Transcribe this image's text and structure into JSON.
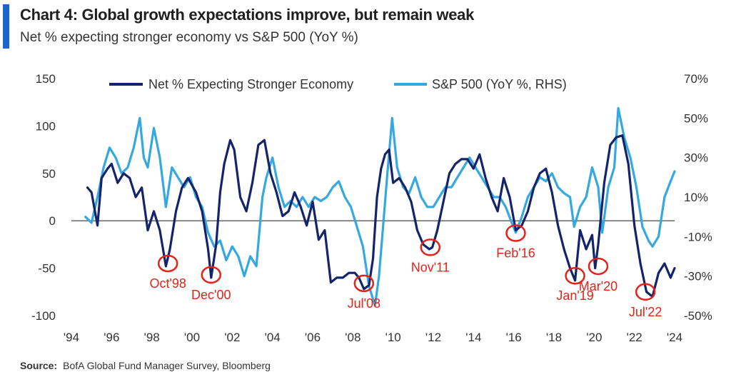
{
  "title": "Chart 4: Global growth expectations improve, but remain weak",
  "subtitle": "Net % expecting stronger economy vs S&P 500 (YoY %)",
  "source_label": "Source:",
  "source_text": "BofA Global Fund Manager Survey, Bloomberg",
  "colors": {
    "accent": "#1a66c9",
    "net": "#14246b",
    "spx": "#35a8e0",
    "annotation": "#e32219"
  },
  "chart_data": {
    "type": "line",
    "title": "Chart 4: Global growth expectations improve, but remain weak",
    "subtitle": "Net % expecting stronger economy vs S&P 500 (YoY %)",
    "legend_position": "top",
    "x_ticks": [
      "'94",
      "'96",
      "'98",
      "'00",
      "'02",
      "'04",
      "'06",
      "'08",
      "'10",
      "'12",
      "'14",
      "'16",
      "'18",
      "'20",
      "'22",
      "'24"
    ],
    "x_tick_years": [
      1994,
      1996,
      1998,
      2000,
      2002,
      2004,
      2006,
      2008,
      2010,
      2012,
      2014,
      2016,
      2018,
      2020,
      2022,
      2024
    ],
    "xlim": [
      1994,
      2024
    ],
    "y_left_lim": [
      -100,
      150
    ],
    "y_left_ticks": [
      "150",
      "100",
      "50",
      "0",
      "-50",
      "-100"
    ],
    "y_left_tick_values": [
      150,
      100,
      50,
      0,
      -50,
      -100
    ],
    "y_right_lim": [
      -50,
      70
    ],
    "y_right_ticks": [
      "70%",
      "50%",
      "30%",
      "10%",
      "-10%",
      "-30%",
      "-50%"
    ],
    "y_right_tick_values": [
      70,
      50,
      30,
      10,
      -10,
      -30,
      -50
    ],
    "series": [
      {
        "name": "Net % Expecting Stronger Economy",
        "axis": "left",
        "x": [
          1994.8,
          1995.0,
          1995.3,
          1995.5,
          1995.8,
          1996.0,
          1996.3,
          1996.6,
          1996.9,
          1997.2,
          1997.5,
          1997.8,
          1998.1,
          1998.4,
          1998.7,
          1998.9,
          1999.2,
          1999.5,
          1999.8,
          2000.2,
          2000.5,
          2000.8,
          2000.95,
          2001.2,
          2001.4,
          2001.6,
          2001.9,
          2002.1,
          2002.4,
          2002.7,
          2003.0,
          2003.3,
          2003.6,
          2003.9,
          2004.2,
          2004.5,
          2004.8,
          2005.1,
          2005.4,
          2005.7,
          2006.0,
          2006.3,
          2006.6,
          2006.9,
          2007.2,
          2007.5,
          2007.8,
          2008.1,
          2008.3,
          2008.55,
          2008.8,
          2009.0,
          2009.2,
          2009.4,
          2009.6,
          2009.8,
          2010.0,
          2010.3,
          2010.6,
          2010.9,
          2011.2,
          2011.5,
          2011.8,
          2011.95,
          2012.2,
          2012.5,
          2012.8,
          2013.1,
          2013.4,
          2013.7,
          2014.0,
          2014.3,
          2014.6,
          2014.9,
          2015.2,
          2015.5,
          2015.8,
          2016.1,
          2016.4,
          2016.7,
          2017.0,
          2017.3,
          2017.6,
          2017.9,
          2018.2,
          2018.5,
          2018.8,
          2019.05,
          2019.3,
          2019.6,
          2019.9,
          2020.05,
          2020.2,
          2020.5,
          2020.8,
          2021.1,
          2021.4,
          2021.7,
          2022.0,
          2022.3,
          2022.6,
          2022.9,
          2023.2,
          2023.5,
          2023.8,
          2024.0
        ],
        "values": [
          35,
          30,
          -5,
          45,
          55,
          60,
          40,
          50,
          45,
          25,
          35,
          -10,
          10,
          -10,
          -48,
          -30,
          10,
          35,
          45,
          30,
          10,
          -30,
          -60,
          -25,
          30,
          60,
          85,
          75,
          25,
          10,
          40,
          80,
          85,
          50,
          30,
          5,
          10,
          30,
          15,
          -5,
          20,
          -20,
          -10,
          -65,
          -60,
          -60,
          -55,
          -55,
          -60,
          -72,
          -68,
          -40,
          25,
          55,
          70,
          75,
          40,
          45,
          35,
          20,
          -10,
          -25,
          -30,
          -28,
          -10,
          20,
          50,
          60,
          65,
          65,
          55,
          70,
          45,
          25,
          10,
          45,
          25,
          -10,
          -5,
          10,
          35,
          50,
          55,
          30,
          -5,
          -30,
          -50,
          -63,
          -10,
          -30,
          -15,
          -50,
          -25,
          40,
          80,
          88,
          90,
          60,
          -5,
          -45,
          -75,
          -80,
          -55,
          -45,
          -60,
          -50
        ]
      },
      {
        "name": "S&P 500 (YoY %, RHS)",
        "axis": "right",
        "x": [
          1994.7,
          1995.0,
          1995.3,
          1995.6,
          1995.9,
          1996.2,
          1996.5,
          1996.8,
          1997.1,
          1997.4,
          1997.6,
          1997.8,
          1998.1,
          1998.4,
          1998.7,
          1999.0,
          1999.3,
          1999.6,
          1999.9,
          2000.2,
          2000.5,
          2000.8,
          2001.1,
          2001.4,
          2001.7,
          2002.0,
          2002.3,
          2002.6,
          2002.9,
          2003.2,
          2003.5,
          2003.7,
          2004.0,
          2004.3,
          2004.6,
          2004.9,
          2005.2,
          2005.5,
          2005.8,
          2006.1,
          2006.4,
          2006.7,
          2007.0,
          2007.3,
          2007.6,
          2007.9,
          2008.2,
          2008.5,
          2008.8,
          2009.1,
          2009.3,
          2009.5,
          2009.7,
          2009.95,
          2010.2,
          2010.5,
          2010.8,
          2011.1,
          2011.4,
          2011.7,
          2012.0,
          2012.3,
          2012.6,
          2012.9,
          2013.2,
          2013.5,
          2013.8,
          2014.1,
          2014.4,
          2014.7,
          2015.0,
          2015.3,
          2015.6,
          2015.9,
          2016.1,
          2016.4,
          2016.7,
          2017.0,
          2017.3,
          2017.6,
          2017.9,
          2018.2,
          2018.5,
          2018.8,
          2019.0,
          2019.3,
          2019.6,
          2019.9,
          2020.2,
          2020.4,
          2020.7,
          2021.0,
          2021.2,
          2021.5,
          2021.8,
          2022.1,
          2022.4,
          2022.7,
          2022.9,
          2023.2,
          2023.5,
          2023.8,
          2024.0
        ],
        "values": [
          0,
          -3,
          10,
          25,
          35,
          30,
          22,
          25,
          35,
          50,
          30,
          25,
          45,
          30,
          5,
          25,
          20,
          15,
          20,
          10,
          5,
          -8,
          -15,
          -12,
          -22,
          -15,
          -20,
          -30,
          -20,
          -25,
          10,
          20,
          30,
          15,
          5,
          8,
          5,
          10,
          5,
          10,
          8,
          10,
          15,
          18,
          10,
          5,
          -5,
          -15,
          -35,
          -45,
          -30,
          -5,
          20,
          50,
          25,
          15,
          12,
          20,
          10,
          5,
          5,
          10,
          15,
          15,
          20,
          25,
          30,
          25,
          20,
          15,
          10,
          10,
          5,
          -3,
          -8,
          0,
          10,
          15,
          20,
          18,
          22,
          15,
          12,
          10,
          -5,
          5,
          10,
          25,
          15,
          -8,
          15,
          25,
          55,
          40,
          30,
          15,
          -5,
          -12,
          -15,
          -10,
          10,
          18,
          23
        ]
      }
    ],
    "annotations": [
      {
        "label": "Oct'98",
        "x": 1998.8,
        "y": -45
      },
      {
        "label": "Dec'00",
        "x": 2000.95,
        "y": -57
      },
      {
        "label": "Jul'08",
        "x": 2008.55,
        "y": -66
      },
      {
        "label": "Nov'11",
        "x": 2011.85,
        "y": -28
      },
      {
        "label": "Feb'16",
        "x": 2016.1,
        "y": -13
      },
      {
        "label": "Jan'19",
        "x": 2019.05,
        "y": -58
      },
      {
        "label": "Mar'20",
        "x": 2020.2,
        "y": -48
      },
      {
        "label": "Jul'22",
        "x": 2022.55,
        "y": -75
      }
    ]
  }
}
